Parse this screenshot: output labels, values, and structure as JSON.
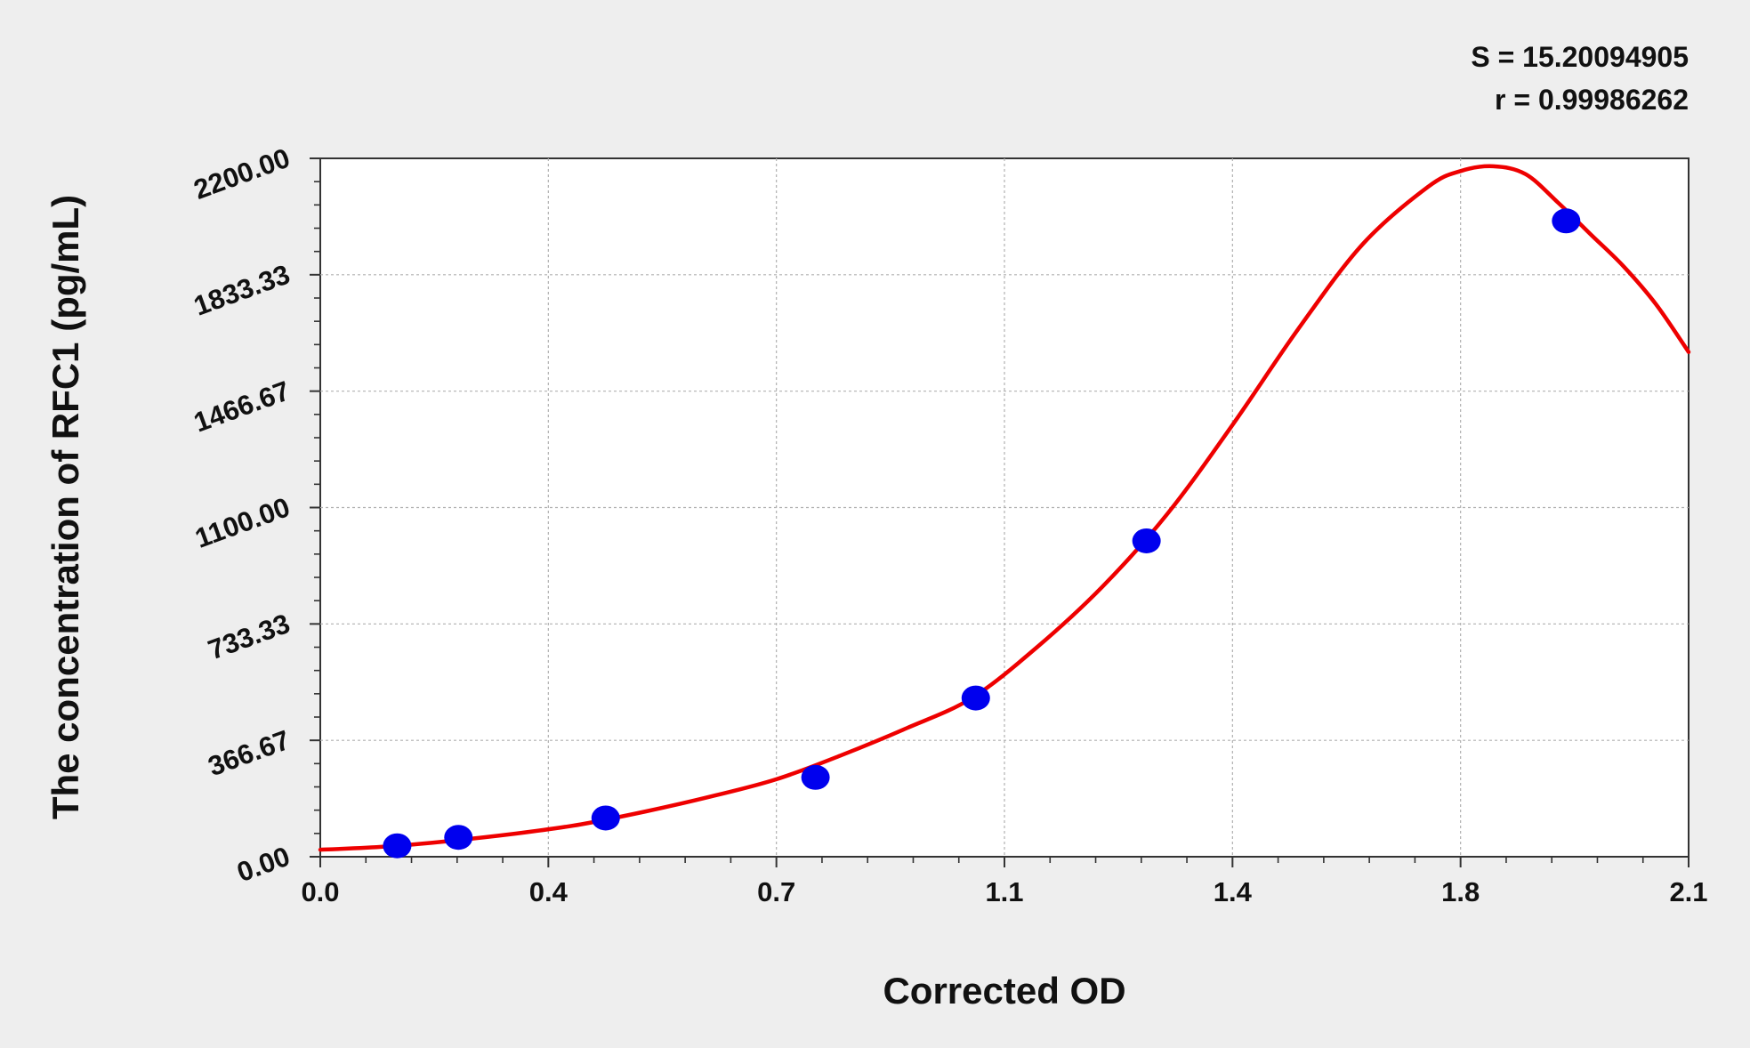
{
  "chart_data": {
    "type": "scatter",
    "xlabel": "Corrected OD",
    "ylabel": "The concentration of RFC1 (pg/mL)",
    "xlim": [
      0.0,
      2.1
    ],
    "ylim": [
      0.0,
      2200.0
    ],
    "x_ticks": [
      "0.0",
      "0.4",
      "0.7",
      "1.1",
      "1.4",
      "1.8",
      "2.1"
    ],
    "x_tick_values": [
      0.0,
      0.35,
      0.7,
      1.05,
      1.4,
      1.75,
      2.1
    ],
    "y_ticks": [
      "0.00",
      "366.67",
      "733.33",
      "1100.00",
      "1466.67",
      "1833.33",
      "2200.00"
    ],
    "y_tick_values": [
      0.0,
      366.67,
      733.33,
      1100.0,
      1466.67,
      1833.33,
      2200.0
    ],
    "grid": true,
    "series": [
      {
        "kind": "points",
        "marker_color": "#0000ee",
        "x": [
          0.118,
          0.212,
          0.438,
          0.76,
          1.006,
          1.268,
          1.912
        ],
        "y": [
          34.4,
          61.0,
          122.0,
          250.0,
          500.0,
          995.0,
          2003.0
        ]
      },
      {
        "kind": "fit-curve",
        "line_color": "#ee0000",
        "x": [
          0.0,
          0.1,
          0.2,
          0.3,
          0.4,
          0.5,
          0.6,
          0.7,
          0.8,
          0.9,
          1.0,
          1.1,
          1.2,
          1.3,
          1.4,
          1.5,
          1.6,
          1.7,
          1.75,
          1.8,
          1.85,
          1.9,
          1.95,
          2.0,
          2.05,
          2.1
        ],
        "y": [
          22,
          32,
          50,
          73,
          102,
          143,
          190,
          244,
          320,
          405,
          500,
          660,
          850,
          1080,
          1360,
          1660,
          1930,
          2110,
          2160,
          2175,
          2150,
          2060,
          1960,
          1860,
          1740,
          1590
        ]
      }
    ],
    "stats": {
      "s_text": "S = 15.20094905",
      "r_text": "r = 0.99986262"
    }
  }
}
